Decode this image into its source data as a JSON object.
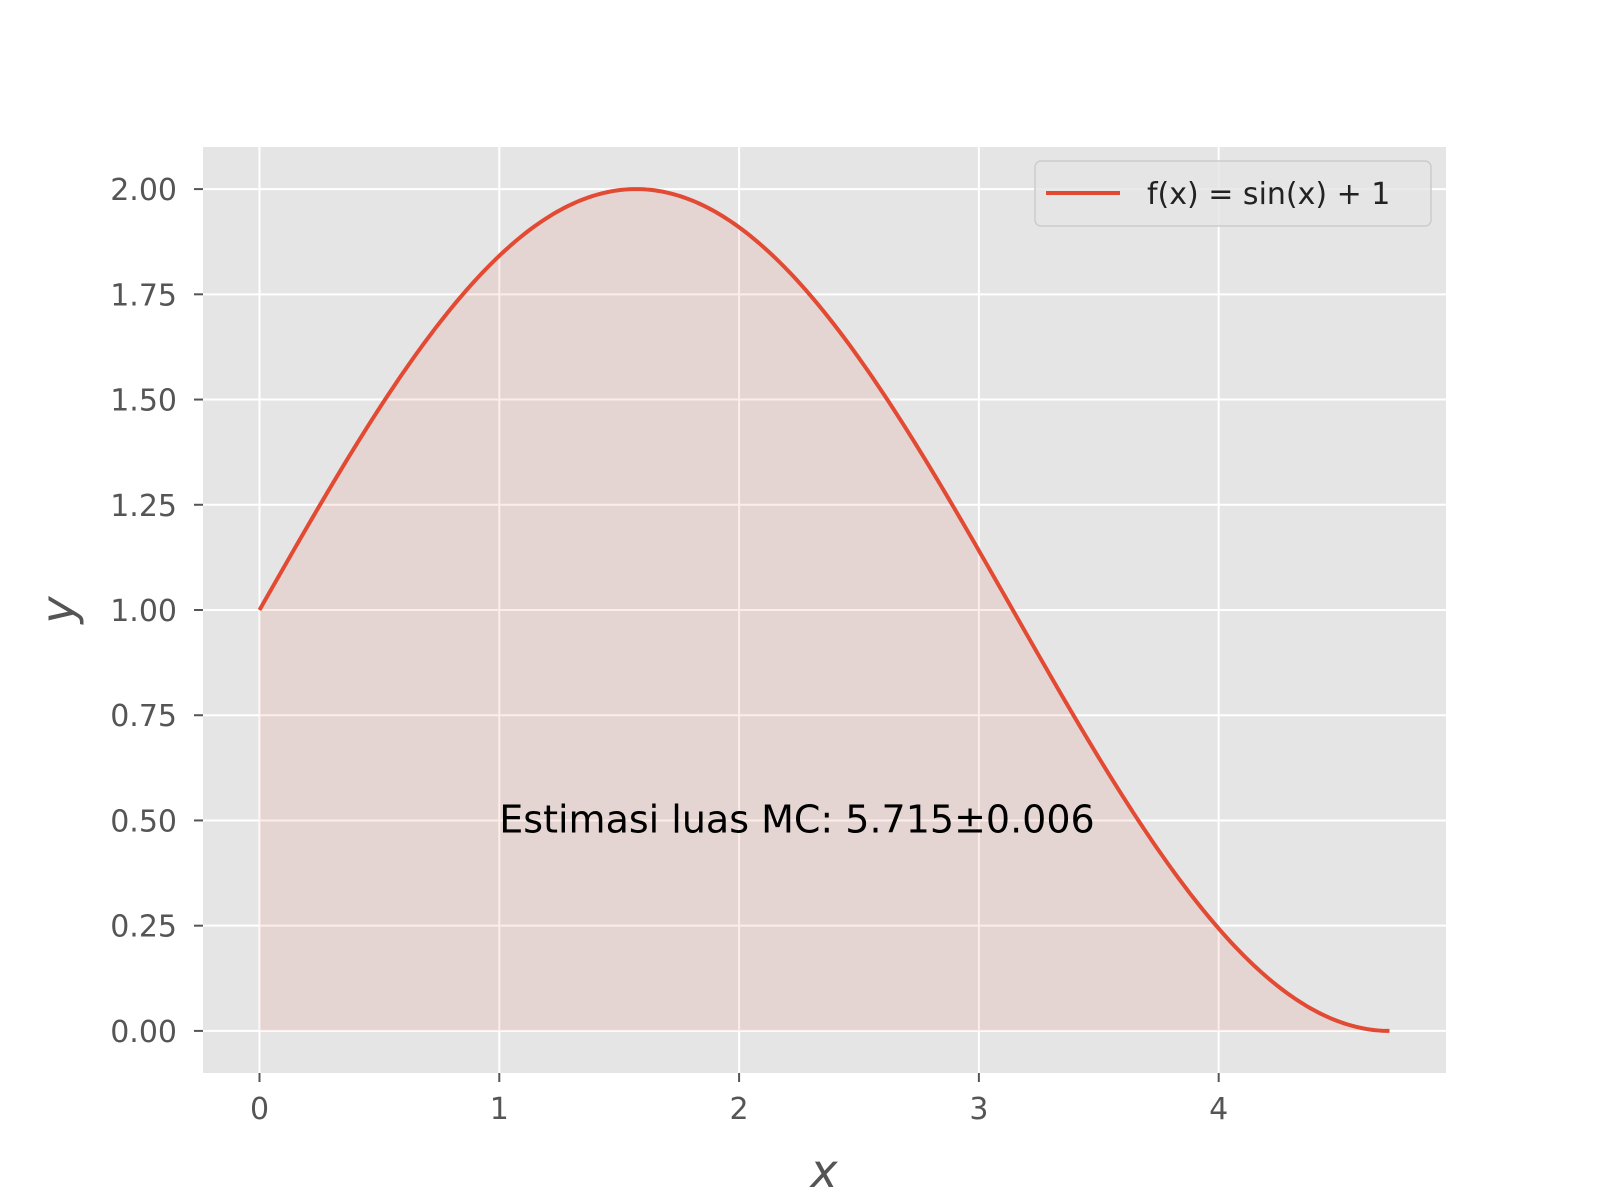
{
  "chart_data": {
    "type": "line",
    "title": "",
    "xlabel": "x",
    "ylabel": "y",
    "xlim": [
      -0.2356,
      4.948
    ],
    "ylim": [
      -0.1,
      2.1
    ],
    "xticks": [
      0,
      1,
      2,
      3,
      4
    ],
    "xtick_labels": [
      "0",
      "1",
      "2",
      "3",
      "4"
    ],
    "yticks": [
      0.0,
      0.25,
      0.5,
      0.75,
      1.0,
      1.25,
      1.5,
      1.75,
      2.0
    ],
    "ytick_labels": [
      "0.00",
      "0.25",
      "0.50",
      "0.75",
      "1.00",
      "1.25",
      "1.50",
      "1.75",
      "2.00"
    ],
    "grid": true,
    "legend_position": "top-right",
    "series": [
      {
        "name": "f(x) = sin(x) + 1",
        "color": "#E24A33",
        "fill_color": "#E24A33",
        "fill_opacity": 0.1,
        "x": [
          0,
          0.25,
          0.5,
          0.75,
          1.0,
          1.25,
          1.5,
          1.5708,
          1.75,
          2.0,
          2.25,
          2.5,
          2.75,
          3.0,
          3.25,
          3.5,
          3.75,
          4.0,
          4.25,
          4.5,
          4.7124
        ],
        "y": [
          1.0,
          1.247,
          1.479,
          1.682,
          1.841,
          1.949,
          1.997,
          2.0,
          1.984,
          1.909,
          1.778,
          1.598,
          1.382,
          1.141,
          0.892,
          0.649,
          0.429,
          0.243,
          0.105,
          0.022,
          0.0
        ]
      }
    ],
    "annotations": [
      {
        "text": "Estimasi luas MC: 5.715±0.006",
        "x": 1.0,
        "y": 0.5
      }
    ],
    "colors": {
      "plot_background": "#E5E5E5",
      "grid": "#FFFFFF",
      "line": "#E24A33",
      "tick_text": "#555555"
    }
  }
}
